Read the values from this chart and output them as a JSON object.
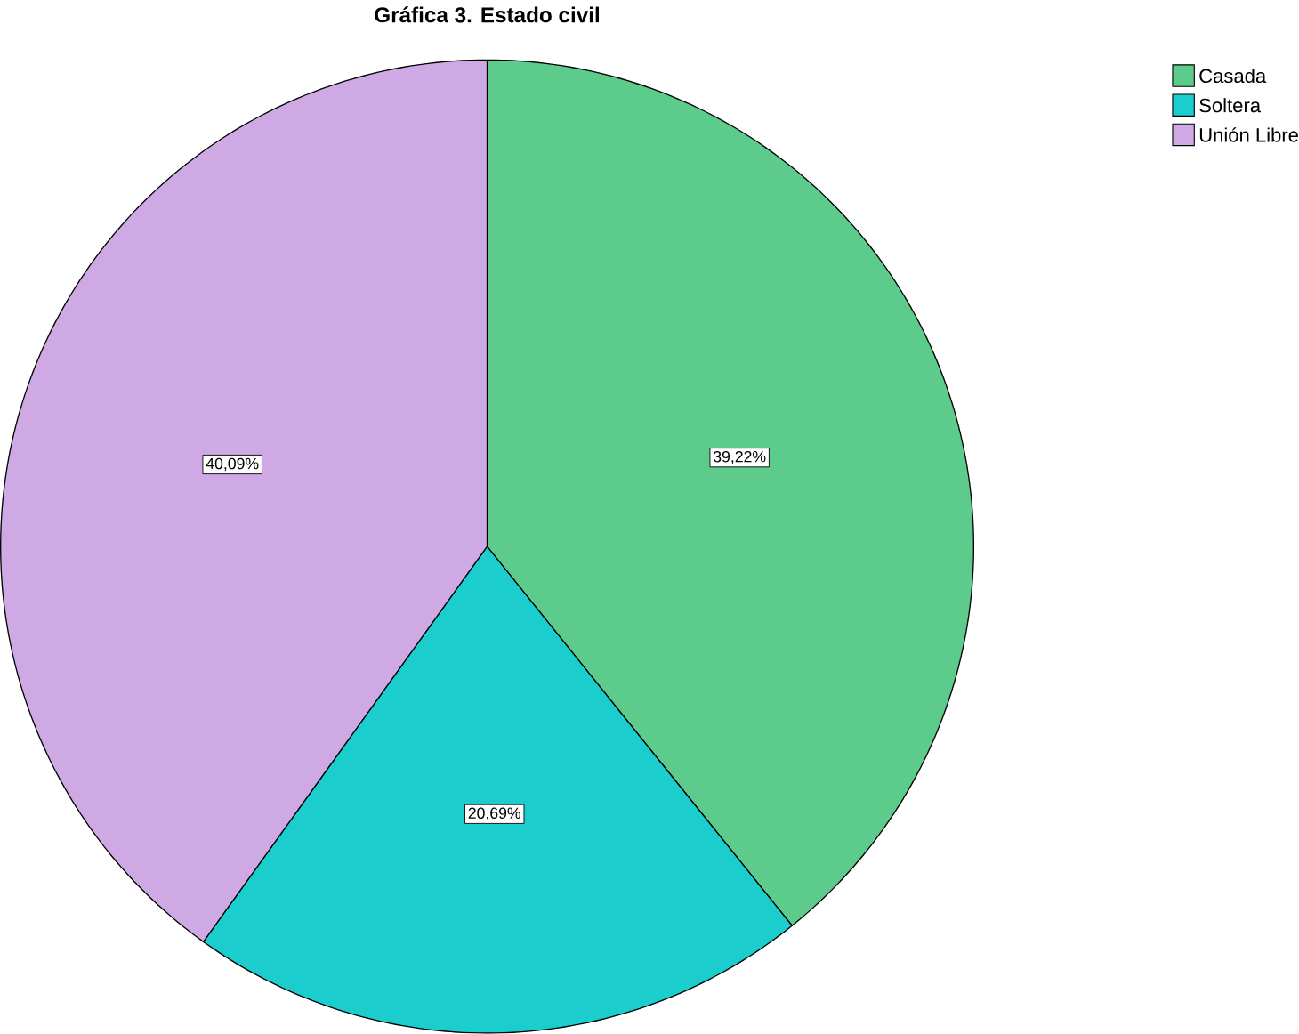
{
  "chart_data": {
    "type": "pie",
    "title": "Gráfica 3. Estado civil",
    "categories": [
      "Casada",
      "Soltera",
      "Unión Libre"
    ],
    "values": [
      39.22,
      20.69,
      40.09
    ],
    "value_labels": [
      "39,22%",
      "20,69%",
      "40,09%"
    ],
    "colors": [
      "#5ccb8b",
      "#1ccdcd",
      "#cfa9e3"
    ],
    "legend": "top right"
  }
}
